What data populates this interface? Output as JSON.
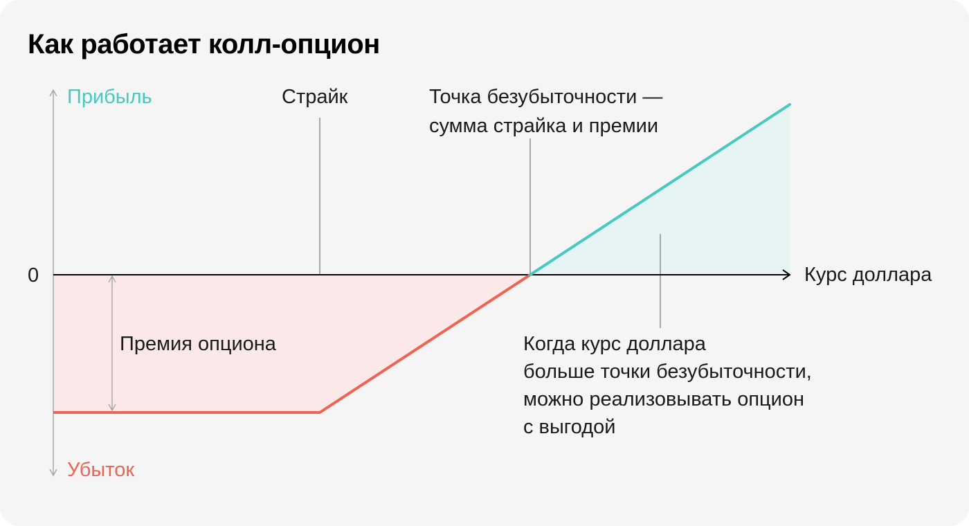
{
  "title": "Как работает колл-опцион",
  "colors": {
    "background": "#f5f5f5",
    "profit": "#48c9c0",
    "loss": "#ee6352",
    "profit_fill": "#e6f5f4",
    "loss_fill": "#fae9e8",
    "axis": "#000000",
    "guide": "#a8a8a8"
  },
  "axes": {
    "y_top_label": "Прибыль",
    "y_bottom_label": "Убыток",
    "zero_label": "0",
    "x_label": "Курс доллара"
  },
  "labels": {
    "strike": "Страйк",
    "breakeven_line1": "Точка безубыточности —",
    "breakeven_line2": "сумма страйка и премии",
    "premium": "Премия опциона",
    "profit_note": [
      "Когда курс доллара",
      "больше точки безубыточности,",
      "можно реализовывать опцион",
      "с выгодой"
    ]
  }
}
